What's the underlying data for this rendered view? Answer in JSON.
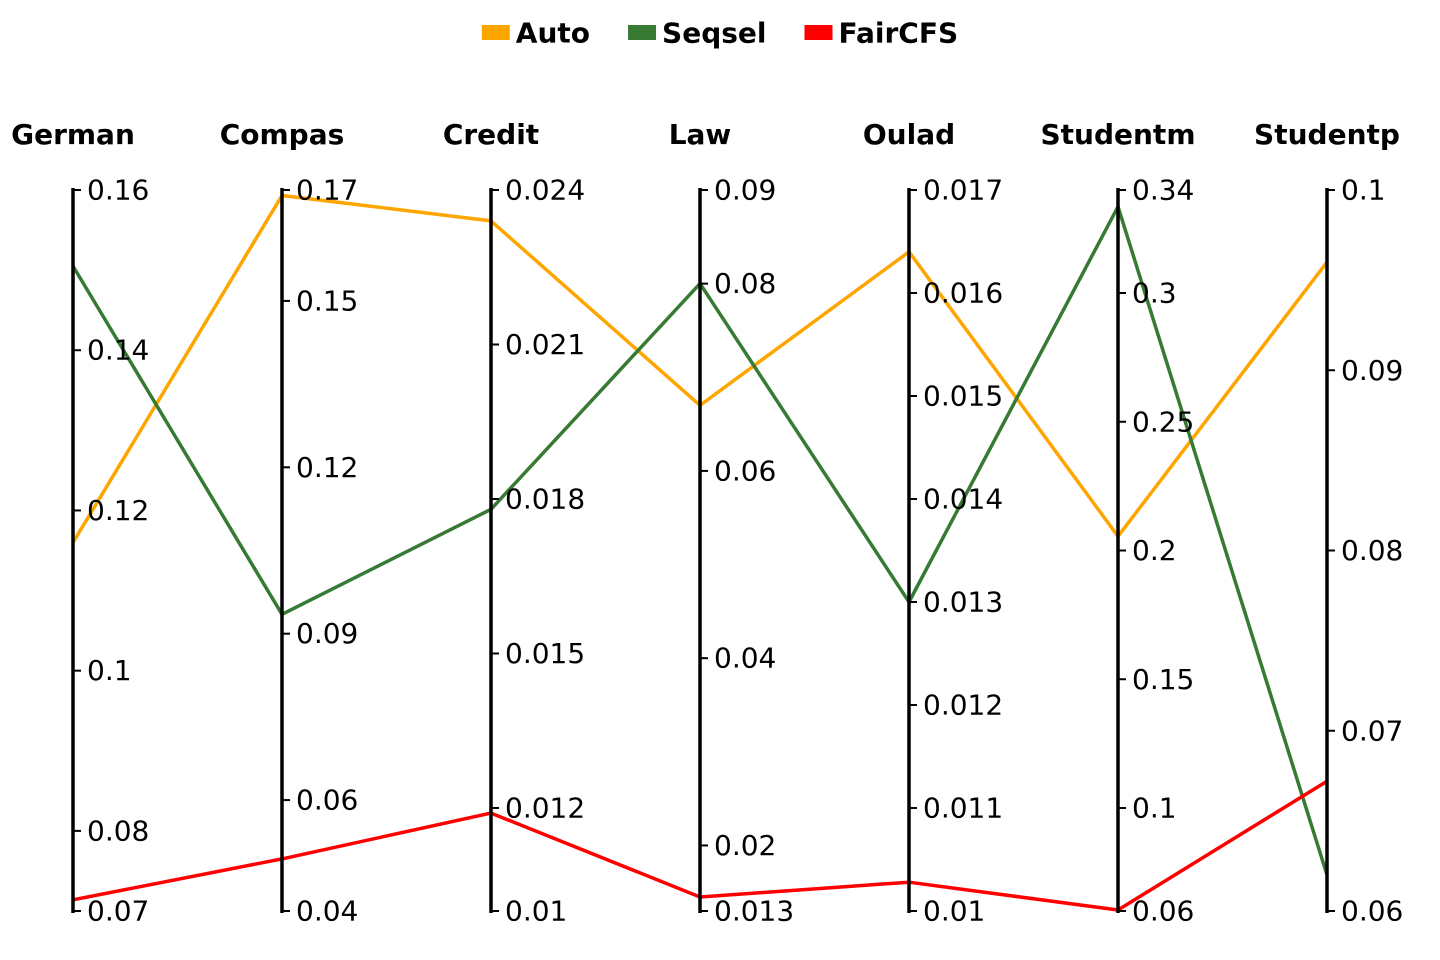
{
  "chart_data": {
    "type": "parallel_coordinates",
    "title": "",
    "legend_position": "top-center",
    "axes": [
      {
        "name": "German",
        "min": 0.07,
        "max": 0.16,
        "ticks": [
          "0.16",
          "0.14",
          "0.12",
          "0.1",
          "0.08",
          "0.07"
        ]
      },
      {
        "name": "Compas",
        "min": 0.04,
        "max": 0.17,
        "ticks": [
          "0.17",
          "0.15",
          "0.12",
          "0.09",
          "0.06",
          "0.04"
        ]
      },
      {
        "name": "Credit",
        "min": 0.01,
        "max": 0.024,
        "ticks": [
          "0.024",
          "0.021",
          "0.018",
          "0.015",
          "0.012",
          "0.01"
        ]
      },
      {
        "name": "Law",
        "min": 0.013,
        "max": 0.09,
        "ticks": [
          "0.09",
          "0.08",
          "0.06",
          "0.04",
          "0.02",
          "0.013"
        ]
      },
      {
        "name": "Oulad",
        "min": 0.01,
        "max": 0.017,
        "ticks": [
          "0.017",
          "0.016",
          "0.015",
          "0.014",
          "0.013",
          "0.012",
          "0.011",
          "0.01"
        ]
      },
      {
        "name": "Studentm",
        "min": 0.06,
        "max": 0.34,
        "ticks": [
          "0.34",
          "0.3",
          "0.25",
          "0.2",
          "0.15",
          "0.1",
          "0.06"
        ]
      },
      {
        "name": "Studentp",
        "min": 0.06,
        "max": 0.1,
        "ticks": [
          "0.1",
          "0.09",
          "0.08",
          "0.07",
          "0.06"
        ]
      }
    ],
    "series": [
      {
        "name": "Auto",
        "color": "#FFA500",
        "values": [
          0.116,
          0.169,
          0.0234,
          0.067,
          0.0164,
          0.2055,
          0.096
        ]
      },
      {
        "name": "Seqsel",
        "color": "#367A34",
        "values": [
          0.1505,
          0.0935,
          0.0178,
          0.08,
          0.013,
          0.3335,
          0.062
        ]
      },
      {
        "name": "FairCFS",
        "color": "#FF0000",
        "values": [
          0.0714,
          0.0494,
          0.0119,
          0.0145,
          0.01028,
          0.0604,
          0.0672
        ]
      }
    ]
  }
}
